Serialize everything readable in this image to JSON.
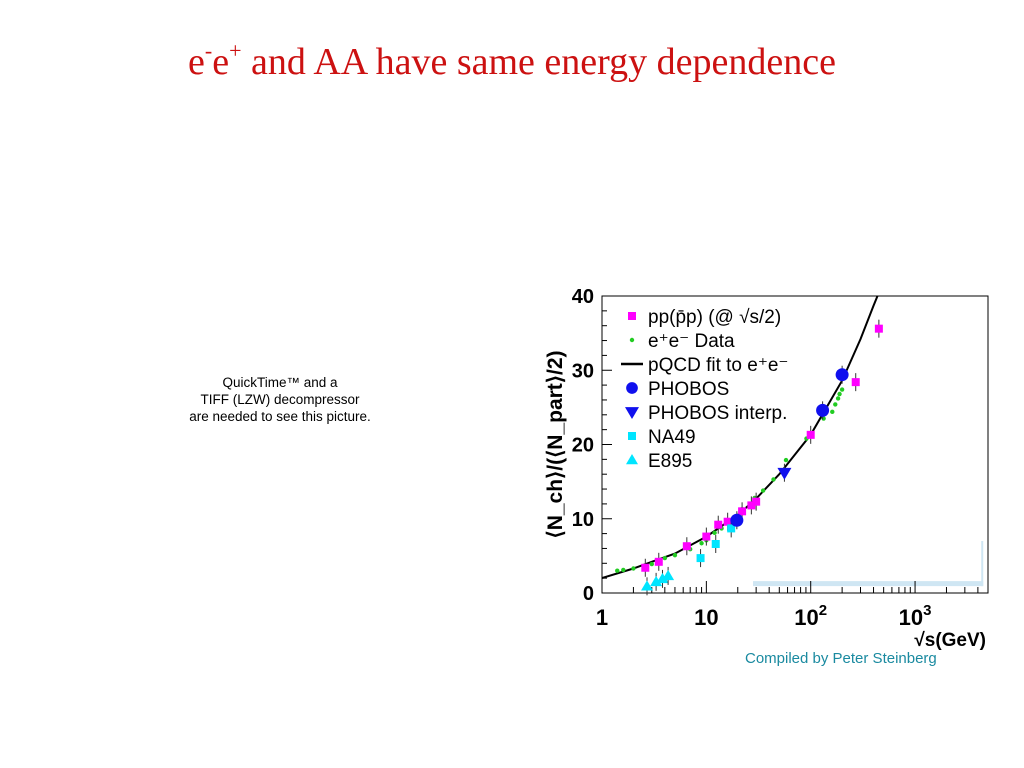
{
  "slide": {
    "title_parts": [
      "e",
      "-",
      "e",
      "+",
      " and AA have same energy dependence"
    ],
    "credit": "Compiled by Peter Steinberg",
    "placeholder_lines": [
      "QuickTime™ and a",
      "TIFF (LZW) decompressor",
      "are needed to see this picture."
    ]
  },
  "chart_data": {
    "type": "scatter",
    "xscale": "log",
    "xlim": [
      1,
      5000
    ],
    "ylim": [
      0,
      40
    ],
    "ylabel": "⟨N_ch⟩/(⟨N_part⟩/2)",
    "xlabel": "√s(GeV)",
    "x_ticks": [
      1,
      10,
      100,
      1000
    ],
    "x_tick_labels": [
      "1",
      "10",
      "10²",
      "10³"
    ],
    "y_ticks": [
      0,
      10,
      20,
      30,
      40
    ],
    "y_tick_labels": [
      "0",
      "10",
      "20",
      "30",
      "40"
    ],
    "legend_position": "top-left",
    "colors": {
      "pp": "#ff00ff",
      "ee": "#22cc22",
      "fit": "#000000",
      "phobos": "#1010ee",
      "phobos_interp": "#1010ee",
      "na49": "#00e5ff",
      "e895": "#00e5ff"
    },
    "series": [
      {
        "name": "pp(p̄p) (@ √s/2)",
        "key": "pp",
        "marker": "square",
        "x": [
          2.6,
          3.5,
          6.5,
          10.0,
          13.0,
          16.0,
          22.0,
          27.0,
          30.0,
          100.0,
          270.0,
          450.0
        ],
        "y": [
          3.4,
          4.2,
          6.3,
          7.6,
          9.2,
          9.6,
          11.0,
          11.8,
          12.3,
          21.3,
          28.4,
          35.6
        ]
      },
      {
        "name": "e⁺e⁻ Data",
        "key": "ee",
        "marker": "dot",
        "x": [
          1.4,
          1.6,
          2.0,
          3.0,
          4.0,
          5.0,
          7.0,
          9.0,
          10.0,
          12.0,
          14.0,
          17.0,
          22.0,
          29.0,
          35.0,
          44.0,
          55.0,
          58.0,
          91.0,
          133.0,
          161.0,
          172.0,
          183.0,
          189.0,
          200.0
        ],
        "y": [
          3.0,
          3.1,
          3.3,
          3.9,
          4.7,
          5.1,
          5.9,
          6.7,
          7.1,
          8.1,
          8.7,
          9.7,
          11.3,
          12.8,
          13.8,
          15.3,
          16.4,
          17.9,
          20.8,
          23.5,
          24.4,
          25.4,
          26.2,
          26.8,
          27.4
        ]
      },
      {
        "name": "pQCD fit to e⁺e⁻",
        "key": "fit",
        "marker": "line",
        "x": [
          1.0,
          2.0,
          3.0,
          5.0,
          10.0,
          20.0,
          30.0,
          50.0,
          100.0,
          200.0,
          300.0,
          400.0,
          500.0
        ],
        "y": [
          2.0,
          3.3,
          4.2,
          5.3,
          7.6,
          10.5,
          12.7,
          16.0,
          21.3,
          28.6,
          34.2,
          38.7,
          42.0
        ]
      },
      {
        "name": "PHOBOS",
        "key": "phobos",
        "marker": "circle",
        "x": [
          19.6,
          130.0,
          200.0
        ],
        "y": [
          9.8,
          24.6,
          29.4
        ]
      },
      {
        "name": "PHOBOS interp.",
        "key": "phobos_interp",
        "marker": "triangle-down",
        "x": [
          56.0
        ],
        "y": [
          16.2
        ]
      },
      {
        "name": "NA49",
        "key": "na49",
        "marker": "square",
        "x": [
          8.8,
          12.3,
          17.3
        ],
        "y": [
          4.7,
          6.6,
          8.7
        ]
      },
      {
        "name": "E895",
        "key": "e895",
        "marker": "triangle-up",
        "x": [
          2.7,
          3.3,
          3.8,
          4.3
        ],
        "y": [
          0.9,
          1.5,
          1.9,
          2.3
        ]
      }
    ]
  }
}
